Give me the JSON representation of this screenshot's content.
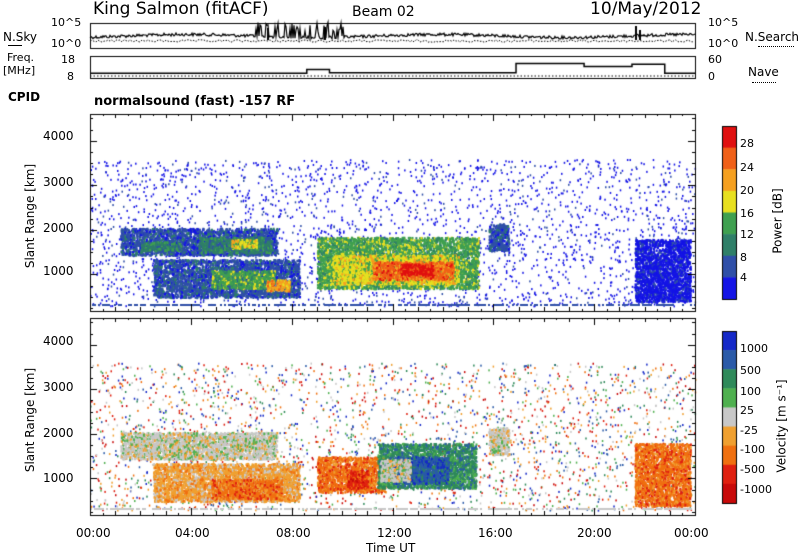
{
  "header": {
    "site": "King Salmon (fitACF)",
    "beam": "Beam 02",
    "date": "10/May/2012"
  },
  "summary": {
    "nsky_label": "N.Sky",
    "freq_label": "Freq.",
    "freq_unit": "[MHz]",
    "cpid_label": "CPID",
    "nsearch_label": "N.Search",
    "nave_label": "Nave",
    "noise_ticks": [
      "10^5",
      "10^0"
    ],
    "freq_ticks": [
      "18",
      "8"
    ],
    "nave_ticks": [
      "60",
      "0"
    ],
    "cpid_text": "normalsound (fast) -157 RF",
    "freq_series": {
      "hours": [
        0,
        8.6,
        8.6,
        9.5,
        9.5,
        16.9,
        16.9,
        19.6,
        19.6,
        21.5,
        21.5,
        22.8,
        22.8,
        24
      ],
      "mhz": [
        10.3,
        10.3,
        12,
        12,
        10.5,
        10.5,
        14.9,
        14.9,
        13.5,
        13.5,
        14.5,
        14.5,
        10.3,
        10.3
      ]
    }
  },
  "chart_data": [
    {
      "type": "heatmap",
      "name": "power",
      "ylabel": "Slant Range [km]",
      "yticks": [
        1000,
        2000,
        3000,
        4000
      ],
      "ylim": [
        180,
        4600
      ],
      "xlim_hours": [
        0,
        24
      ],
      "colorbar_label": "Power [dB]",
      "colorbar_ticks": [
        "4",
        "8",
        "12",
        "16",
        "20",
        "24",
        "28"
      ],
      "colorbar_colors": [
        "#1414e6",
        "#2f4fa8",
        "#2f7f68",
        "#3fa050",
        "#e8e020",
        "#f5a020",
        "#f06018",
        "#e01010"
      ],
      "regions": [
        {
          "h0": 1.2,
          "h1": 7.4,
          "r0": 1450,
          "r1": 2050,
          "level": 1
        },
        {
          "h0": 2.0,
          "h1": 3.6,
          "r0": 1550,
          "r1": 1750,
          "level": 2
        },
        {
          "h0": 4.3,
          "h1": 7.2,
          "r0": 1500,
          "r1": 1850,
          "level": 2
        },
        {
          "h0": 5.6,
          "h1": 6.6,
          "r0": 1600,
          "r1": 1800,
          "level": 4
        },
        {
          "h0": 2.5,
          "h1": 8.3,
          "r0": 500,
          "r1": 1350,
          "level": 1
        },
        {
          "h0": 4.8,
          "h1": 7.3,
          "r0": 700,
          "r1": 1100,
          "level": 3
        },
        {
          "h0": 7.0,
          "h1": 7.9,
          "r0": 650,
          "r1": 900,
          "level": 5
        },
        {
          "h0": 9.0,
          "h1": 15.4,
          "r0": 700,
          "r1": 1850,
          "level": 3
        },
        {
          "h0": 9.6,
          "h1": 14.6,
          "r0": 800,
          "r1": 1450,
          "level": 4
        },
        {
          "h0": 11.2,
          "h1": 14.4,
          "r0": 900,
          "r1": 1300,
          "level": 6
        },
        {
          "h0": 12.3,
          "h1": 13.6,
          "r0": 1000,
          "r1": 1250,
          "level": 7
        },
        {
          "h0": 15.8,
          "h1": 16.6,
          "r0": 1550,
          "r1": 2150,
          "level": 1
        },
        {
          "h0": 21.6,
          "h1": 23.8,
          "r0": 400,
          "r1": 1800,
          "level": 0
        }
      ]
    },
    {
      "type": "heatmap",
      "name": "velocity",
      "ylabel": "Slant Range [km]",
      "yticks": [
        1000,
        2000,
        3000,
        4000
      ],
      "ylim": [
        180,
        4600
      ],
      "xlim_hours": [
        0,
        24
      ],
      "xticks": [
        "00:00",
        "04:00",
        "08:00",
        "12:00",
        "16:00",
        "20:00",
        "00:00"
      ],
      "xlabel": "Time UT",
      "colorbar_label": "Velocity [m s⁻¹]",
      "colorbar_ticks": [
        "1000",
        "500",
        "100",
        "25",
        "-25",
        "-100",
        "-500",
        "-1000"
      ],
      "colorbar_colors": [
        "#1428c8",
        "#2a5aa8",
        "#2f8a5a",
        "#4fb04f",
        "#c8c8c8",
        "#f0a030",
        "#f07010",
        "#e02010",
        "#c80a0a"
      ],
      "regions": [
        {
          "h0": 1.2,
          "h1": 7.4,
          "r0": 1450,
          "r1": 2050,
          "level": 4
        },
        {
          "h0": 2.5,
          "h1": 8.3,
          "r0": 500,
          "r1": 1350,
          "level": 5
        },
        {
          "h0": 4.8,
          "h1": 7.6,
          "r0": 550,
          "r1": 1000,
          "level": 6
        },
        {
          "h0": 9.0,
          "h1": 11.7,
          "r0": 700,
          "r1": 1500,
          "level": 6
        },
        {
          "h0": 10.2,
          "h1": 11.0,
          "r0": 800,
          "r1": 1200,
          "level": 7
        },
        {
          "h0": 11.4,
          "h1": 15.3,
          "r0": 800,
          "r1": 1800,
          "level": 2
        },
        {
          "h0": 12.0,
          "h1": 14.2,
          "r0": 900,
          "r1": 1500,
          "level": 1
        },
        {
          "h0": 11.5,
          "h1": 12.7,
          "r0": 950,
          "r1": 1450,
          "level": 4
        },
        {
          "h0": 15.8,
          "h1": 16.6,
          "r0": 1550,
          "r1": 2150,
          "level": 4
        },
        {
          "h0": 21.6,
          "h1": 23.8,
          "r0": 400,
          "r1": 1800,
          "level": 6
        }
      ]
    }
  ]
}
